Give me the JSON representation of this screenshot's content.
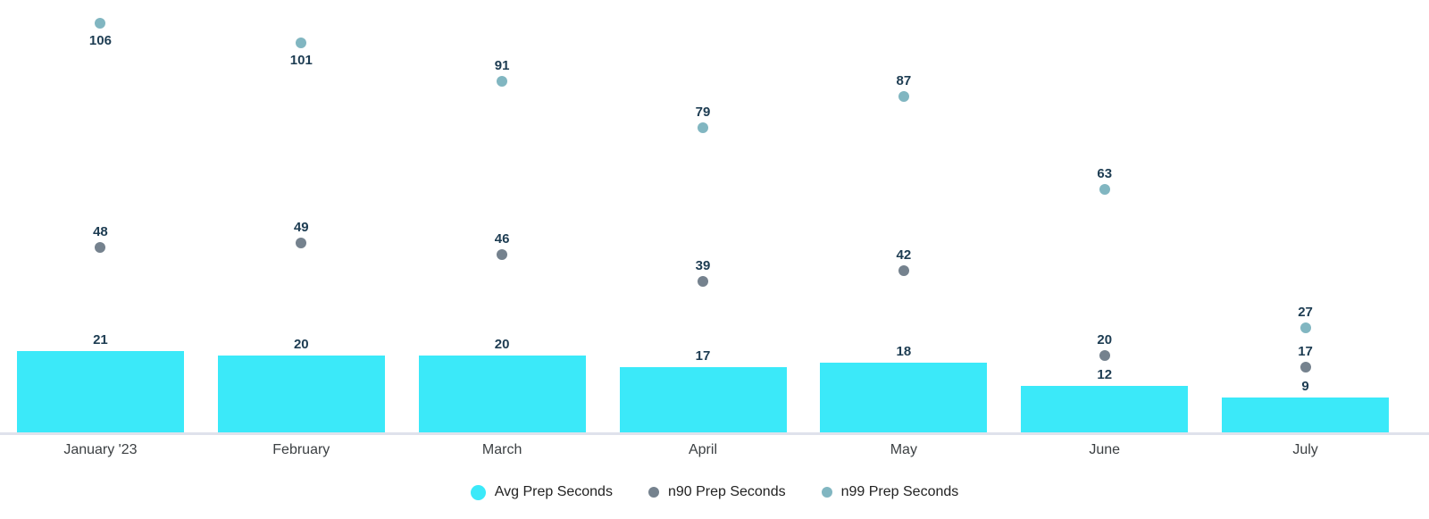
{
  "chart_data": {
    "type": "bar",
    "title": "",
    "xlabel": "",
    "ylabel": "",
    "categories": [
      "January '23",
      "February",
      "March",
      "April",
      "May",
      "June",
      "July"
    ],
    "series": [
      {
        "name": "Avg Prep Seconds",
        "render": "bar",
        "color": "#3be9f9",
        "values": [
          21,
          20,
          20,
          17,
          18,
          12,
          9
        ]
      },
      {
        "name": "n90 Prep Seconds",
        "render": "point",
        "color": "#75828e",
        "values": [
          48,
          49,
          46,
          39,
          42,
          20,
          17
        ]
      },
      {
        "name": "n99 Prep Seconds",
        "render": "point",
        "color": "#81b6c1",
        "values": [
          106,
          101,
          91,
          79,
          87,
          63,
          27
        ]
      }
    ],
    "ylim": [
      0,
      112
    ],
    "grid": false,
    "legend_position": "bottom",
    "value_labels_shown": true,
    "colors": {
      "value_label_text": "#1d3c52",
      "axis_label_text": "#3c4043",
      "legend_text": "#222222",
      "axis_line": "#dfe2ec",
      "background": "#ffffff"
    }
  }
}
